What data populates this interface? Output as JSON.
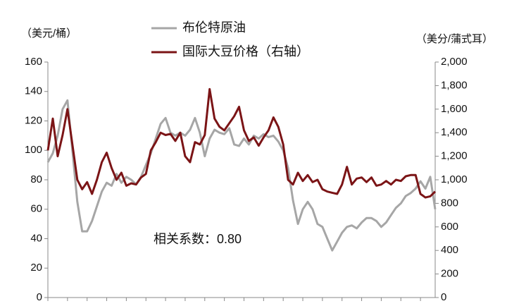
{
  "chart_data": {
    "type": "line",
    "y_label": "（美元/桶）",
    "y2_label": "（美分/蒲式耳）",
    "annotation": "相关系数：0.80",
    "categories": [
      null,
      null,
      null,
      null,
      null,
      null,
      null,
      null,
      null,
      null,
      null,
      null,
      null,
      null,
      null,
      null,
      null,
      null,
      null,
      null,
      null,
      null,
      null,
      null,
      null,
      null,
      null,
      null,
      null,
      null,
      null,
      null,
      null,
      null,
      null,
      null,
      null,
      null,
      null,
      null,
      null,
      null,
      null,
      null,
      null,
      null,
      null,
      null,
      null,
      null,
      null,
      null,
      null,
      null,
      null,
      null,
      null,
      null,
      null,
      null,
      null,
      null,
      null,
      null,
      null,
      null,
      null,
      null,
      null,
      null,
      null,
      null,
      null,
      null,
      null,
      null,
      null,
      null,
      null,
      null
    ],
    "series": [
      {
        "name": "布伦特原油",
        "color": "#a6a6a6",
        "values": [
          92,
          98,
          110,
          128,
          134,
          100,
          65,
          45,
          45,
          52,
          62,
          72,
          78,
          76,
          84,
          78,
          82,
          80,
          77,
          82,
          90,
          98,
          108,
          118,
          122,
          112,
          110,
          112,
          110,
          114,
          122,
          112,
          96,
          108,
          114,
          112,
          111,
          115,
          104,
          103,
          108,
          104,
          110,
          108,
          111,
          109,
          110,
          106,
          100,
          88,
          66,
          50,
          60,
          65,
          60,
          50,
          48,
          40,
          32,
          38,
          44,
          48,
          49,
          47,
          51,
          54,
          54,
          52,
          48,
          51,
          56,
          61,
          64,
          69,
          71,
          74,
          79,
          74,
          82,
          60
        ]
      },
      {
        "name": "国际大豆价格（右轴）",
        "color": "#7b1416",
        "axis": "y2",
        "values": [
          1250,
          1520,
          1200,
          1380,
          1600,
          1300,
          1000,
          920,
          980,
          880,
          1000,
          1150,
          1230,
          1100,
          1000,
          1060,
          950,
          970,
          960,
          1020,
          1050,
          1250,
          1320,
          1400,
          1380,
          1390,
          1330,
          1400,
          1200,
          1150,
          1320,
          1300,
          1380,
          1770,
          1520,
          1450,
          1420,
          1480,
          1540,
          1620,
          1420,
          1330,
          1360,
          1290,
          1360,
          1420,
          1530,
          1450,
          1300,
          1000,
          960,
          1060,
          990,
          1040,
          980,
          1000,
          920,
          900,
          890,
          880,
          960,
          1110,
          960,
          1010,
          1020,
          980,
          1020,
          950,
          960,
          990,
          960,
          1000,
          990,
          1030,
          1040,
          1040,
          880,
          850,
          860,
          900
        ]
      }
    ],
    "ylim": [
      0,
      160
    ],
    "yticks": [
      0,
      20,
      40,
      60,
      80,
      100,
      120,
      140,
      160
    ],
    "y2lim": [
      0,
      2000
    ],
    "y2ticks": [
      0,
      200,
      400,
      600,
      800,
      {
        "value": 1000,
        "label": "1,000"
      },
      {
        "value": 1200,
        "label": "1,200"
      },
      {
        "value": 1400,
        "label": "1,400"
      },
      {
        "value": 1600,
        "label": "1,600"
      },
      {
        "value": 1800,
        "label": "1,800"
      },
      {
        "value": 2000,
        "label": "2,000"
      }
    ]
  }
}
